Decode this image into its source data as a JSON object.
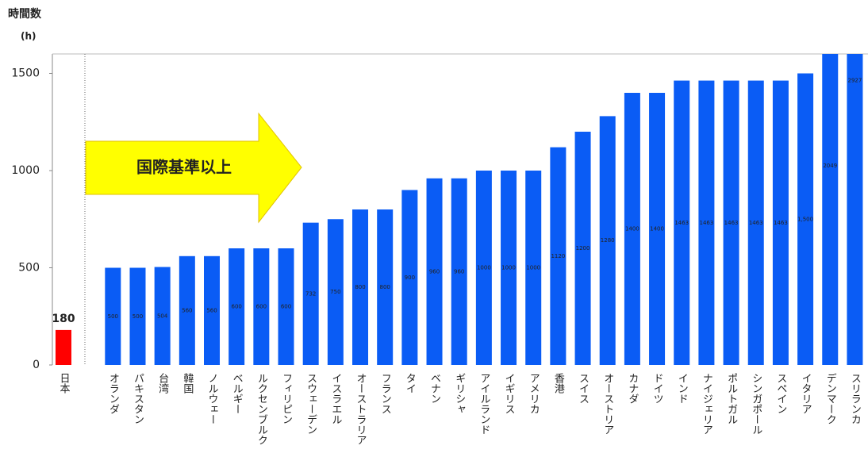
{
  "chart_data": {
    "type": "bar",
    "y_label": "時間数",
    "y_unit": "(h)",
    "annotation": "国際基準以上",
    "categories": [
      "日本",
      "オランダ",
      "パキスタン",
      "台湾",
      "韓国",
      "ノルウェー",
      "ベルギー",
      "ルクセンブルク",
      "フィリピン",
      "スウェーデン",
      "イスラエル",
      "オーストラリア",
      "フランス",
      "タイ",
      "ベナン",
      "ギリシャ",
      "アイルランド",
      "イギリス",
      "アメリカ",
      "香港",
      "スイス",
      "オーストリア",
      "カナダ",
      "ドイツ",
      "インド",
      "ナイジェリア",
      "ポルトガル",
      "シンガポール",
      "スペイン",
      "イタリア",
      "デンマーク",
      "スリランカ"
    ],
    "values": [
      180,
      500,
      500,
      504,
      560,
      560,
      600,
      600,
      600,
      732,
      750,
      800,
      800,
      900,
      960,
      960,
      1000,
      1000,
      1000,
      1120,
      1200,
      1280,
      1400,
      1400,
      1463,
      1463,
      1463,
      1463,
      1463,
      1500,
      2049,
      2927
    ],
    "value_labels": [
      "180",
      "500",
      "500",
      "504",
      "560",
      "560",
      "600",
      "600",
      "600",
      "732",
      "750",
      "800",
      "800",
      "900",
      "960",
      "960",
      "1000",
      "1000",
      "1000",
      "1120",
      "1200",
      "1280",
      "1400",
      "1400",
      "1463",
      "1463",
      "1463",
      "1463",
      "1463",
      "1,500",
      "2049",
      "2927"
    ],
    "colors": [
      "#ff0000",
      "#0a5cf5",
      "#0a5cf5",
      "#0a5cf5",
      "#0a5cf5",
      "#0a5cf5",
      "#0a5cf5",
      "#0a5cf5",
      "#0a5cf5",
      "#0a5cf5",
      "#0a5cf5",
      "#0a5cf5",
      "#0a5cf5",
      "#0a5cf5",
      "#0a5cf5",
      "#0a5cf5",
      "#0a5cf5",
      "#0a5cf5",
      "#0a5cf5",
      "#0a5cf5",
      "#0a5cf5",
      "#0a5cf5",
      "#0a5cf5",
      "#0a5cf5",
      "#0a5cf5",
      "#0a5cf5",
      "#0a5cf5",
      "#0a5cf5",
      "#0a5cf5",
      "#0a5cf5",
      "#0a5cf5",
      "#0a5cf5"
    ],
    "ylim": [
      0,
      1600
    ],
    "yticks": [
      0,
      500,
      1000,
      1500
    ],
    "grid": false
  }
}
